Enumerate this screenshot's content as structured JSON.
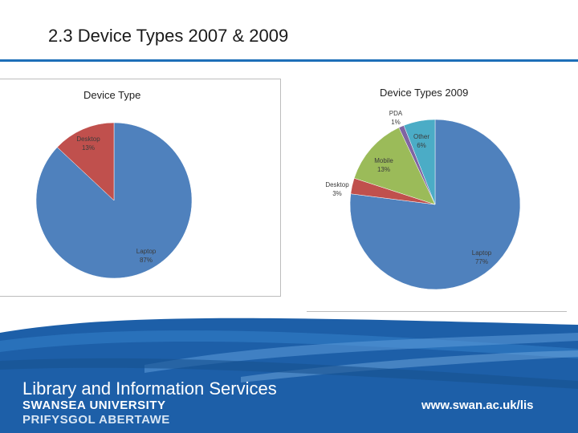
{
  "slide": {
    "title": "2.3 Device Types 2007 & 2009"
  },
  "chart_data": [
    {
      "type": "pie",
      "title": "Device Type",
      "labels": [
        "Laptop",
        "Desktop"
      ],
      "values": [
        87,
        13
      ],
      "value_labels": [
        "87%",
        "13%"
      ],
      "colors": [
        "#4f81bd",
        "#c0504d"
      ]
    },
    {
      "type": "pie",
      "title": "Device Types 2009",
      "labels": [
        "Laptop",
        "Desktop",
        "Mobile",
        "PDA",
        "Other"
      ],
      "values": [
        77,
        3,
        13,
        1,
        6
      ],
      "value_labels": [
        "77%",
        "3%",
        "13%",
        "1%",
        "6%"
      ],
      "colors": [
        "#4f81bd",
        "#c0504d",
        "#9bbb59",
        "#8064a2",
        "#4bacc6"
      ]
    }
  ],
  "footer": {
    "department": "Library and Information Services",
    "university_en": "SWANSEA UNIVERSITY",
    "university_cy": "PRIFYSGOL ABERTAWE",
    "url": "www.swan.ac.uk/lis",
    "band_color": "#1d5fa8"
  }
}
